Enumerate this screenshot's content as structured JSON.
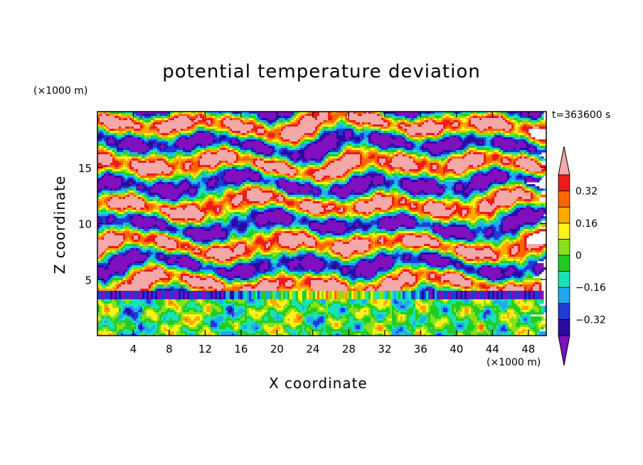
{
  "chart_data": {
    "type": "heatmap",
    "title": "potential temperature deviation",
    "time_label": "t=363600 s",
    "xlabel": "X coordinate",
    "ylabel": "Z coordinate",
    "x_unit": "(×1000 m)",
    "y_unit": "(×1000 m)",
    "xlim": [
      0,
      50
    ],
    "ylim": [
      0,
      20
    ],
    "x_ticks": [
      4,
      8,
      12,
      16,
      20,
      24,
      28,
      32,
      36,
      40,
      44,
      48
    ],
    "y_ticks": [
      5,
      10,
      15
    ],
    "colorbar": {
      "levels": [
        -0.4,
        -0.32,
        -0.24,
        -0.16,
        -0.08,
        0,
        0.08,
        0.16,
        0.24,
        0.32,
        0.4
      ],
      "labeled_levels": [
        0.32,
        0.16,
        0,
        -0.16,
        -0.32
      ],
      "labels": [
        "0.32",
        "0.16",
        "0",
        "−0.16",
        "−0.32"
      ],
      "colors": [
        "#7f0fbf",
        "#2a0ba0",
        "#1f3bd6",
        "#1fa9f2",
        "#19e3b6",
        "#22cc22",
        "#88e018",
        "#fff21c",
        "#ffaa00",
        "#ff6600",
        "#ee1a1a",
        "#f4a8a8"
      ],
      "extend": "both"
    }
  }
}
